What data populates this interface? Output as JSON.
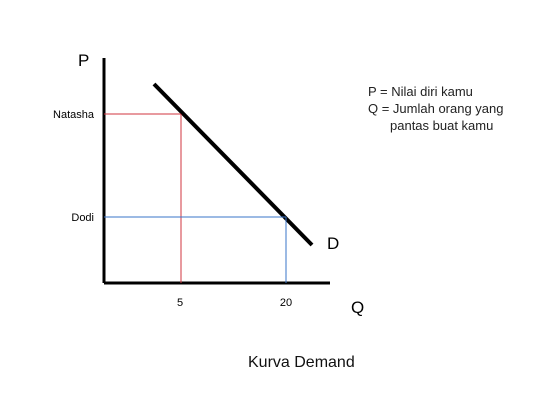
{
  "chart_data": {
    "type": "line",
    "xlabel": "Q",
    "ylabel": "P",
    "title": "Kurva Demand",
    "curve_label": "D",
    "x_ticks": [
      "5",
      "20"
    ],
    "y_ticks": [
      "Natasha",
      "Dodi"
    ],
    "points": [
      {
        "name": "Natasha",
        "q": 5,
        "color": "#d0363f"
      },
      {
        "name": "Dodi",
        "q": 20,
        "color": "#3a74c8"
      }
    ],
    "legend_lines": [
      "P = Nilai diri kamu",
      "Q = Jumlah orang yang",
      "pantas buat kamu"
    ]
  }
}
